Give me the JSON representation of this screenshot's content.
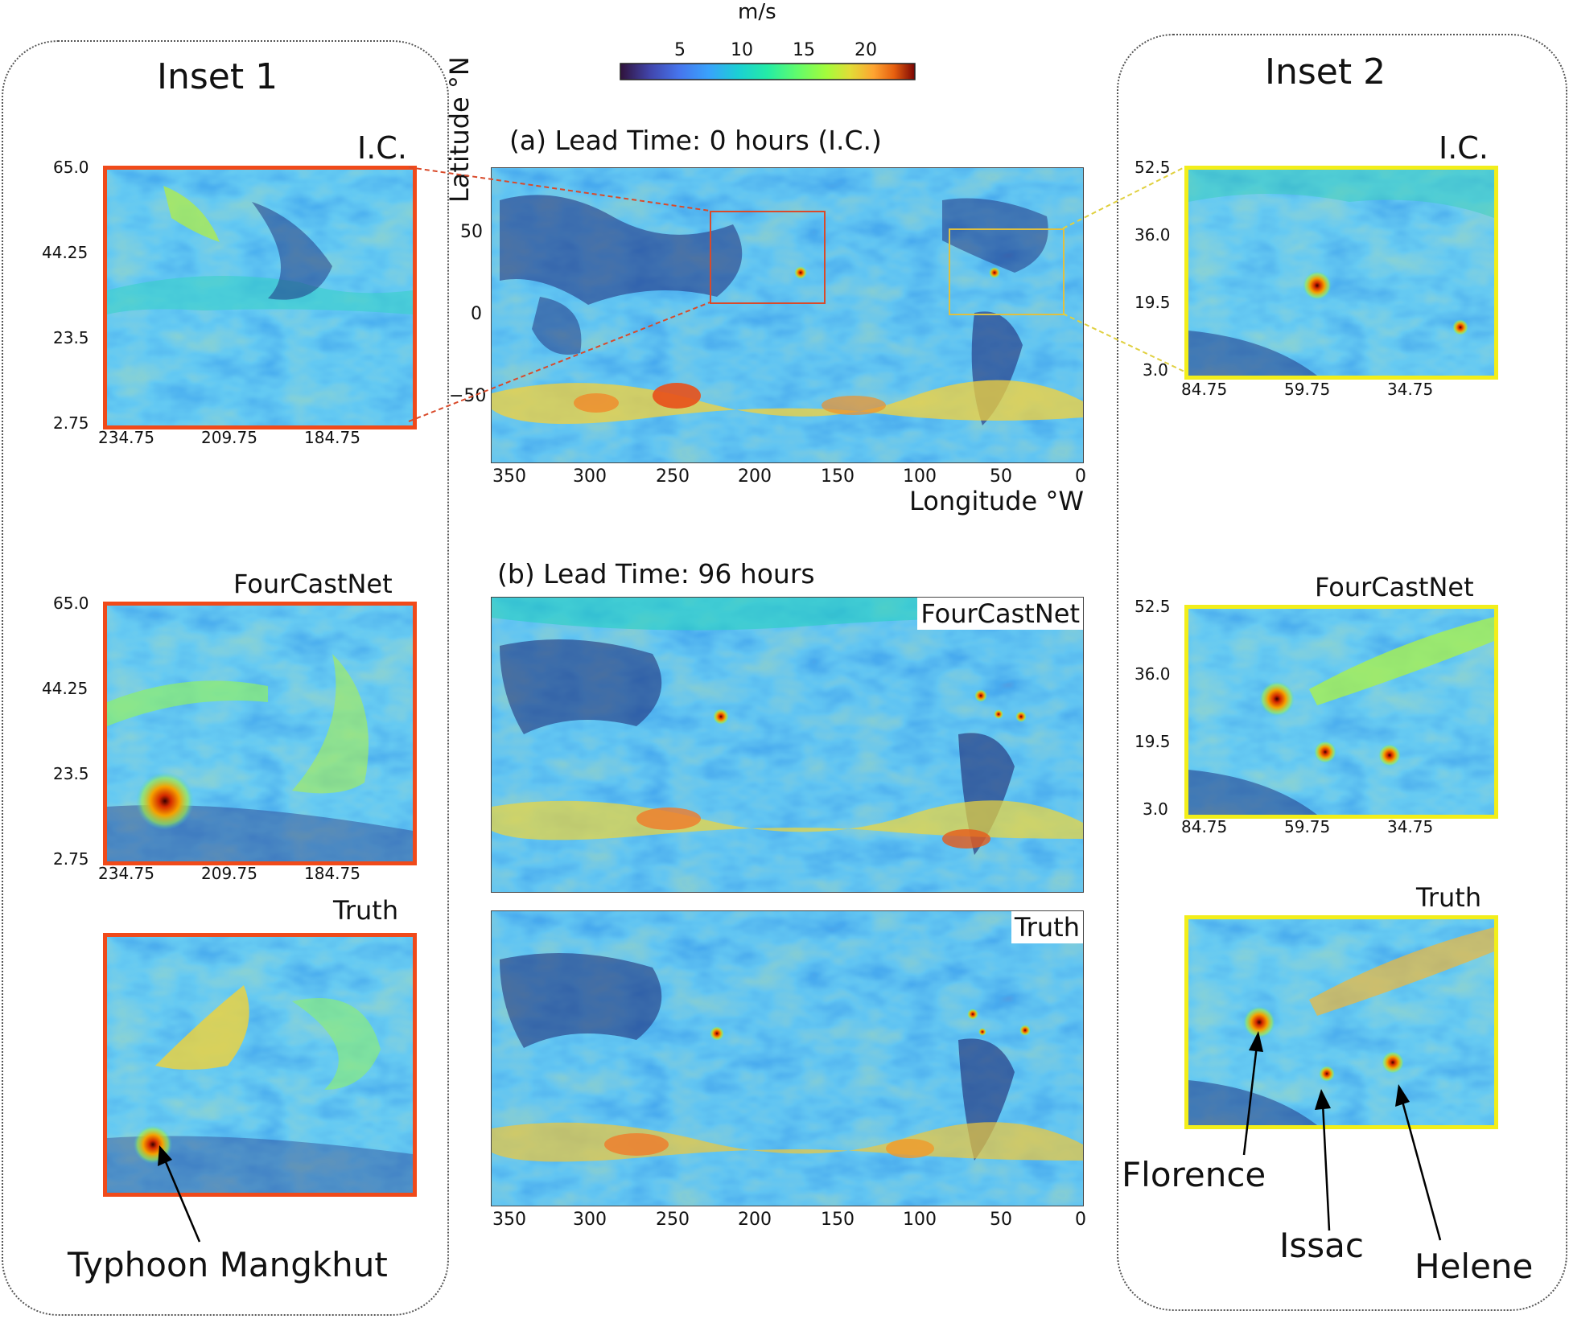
{
  "colorbar": {
    "unit": "m/s",
    "ticks": [
      "5",
      "10",
      "15",
      "20"
    ]
  },
  "inset1": {
    "title": "Inset 1",
    "ic_label": "I.C.",
    "fcn_label": "FourCastNet",
    "truth_label": "Truth",
    "y_ticks": [
      "65.0",
      "44.25",
      "23.5",
      "2.75"
    ],
    "x_ticks": [
      "234.75",
      "209.75",
      "184.75"
    ],
    "storm_label": "Typhoon Mangkhut",
    "frame_color": "#f04a1a"
  },
  "inset2": {
    "title": "Inset 2",
    "ic_label": "I.C.",
    "fcn_label": "FourCastNet",
    "truth_label": "Truth",
    "y_ticks": [
      "52.5",
      "36.0",
      "19.5",
      "3.0"
    ],
    "x_ticks": [
      "84.75",
      "59.75",
      "34.75"
    ],
    "storms": [
      "Florence",
      "Issac",
      "Helene"
    ],
    "frame_color": "#f2ee1a"
  },
  "panel_a": {
    "title": "(a) Lead Time: 0 hours (I.C.)",
    "ylabel": "Latitude °N",
    "xlabel": "Longitude °W",
    "y_ticks": [
      "50",
      "0",
      "−50"
    ],
    "x_ticks": [
      "350",
      "300",
      "250",
      "200",
      "150",
      "100",
      "50",
      "0"
    ]
  },
  "panel_b": {
    "title": "(b) Lead Time: 96 hours",
    "fcn_label": "FourCastNet",
    "truth_label": "Truth",
    "x_ticks": [
      "350",
      "300",
      "250",
      "200",
      "150",
      "100",
      "50",
      "0"
    ]
  }
}
